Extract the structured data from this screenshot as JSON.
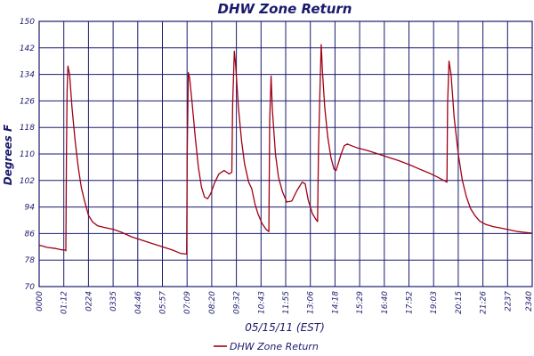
{
  "chart_data": {
    "type": "line",
    "title": "DHW Zone Return",
    "xlabel": "05/15/11 (EST)",
    "ylabel": "Degrees F",
    "ylim": [
      70,
      150
    ],
    "y_ticks": [
      "70",
      "78",
      "86",
      "94",
      "102",
      "110",
      "118",
      "126",
      "134",
      "142",
      "150"
    ],
    "x_ticks": [
      "0000",
      "01:12",
      "0224",
      "0335",
      "04:46",
      "05:57",
      "07:09",
      "08:20",
      "09:32",
      "10:43",
      "11:55",
      "13:06",
      "14:18",
      "15:29",
      "16:40",
      "17:52",
      "19:03",
      "20:15",
      "21:26",
      "2237",
      "2340"
    ],
    "grid": true,
    "legend_position": "bottom-center",
    "colors": {
      "series": "#a00014",
      "grid": "#1a1a6e",
      "text": "#1a1a6e",
      "background": "#ffffff"
    },
    "series": [
      {
        "name": "DHW Zone Return",
        "points": [
          [
            0.0,
            82.5
          ],
          [
            0.4,
            81.8
          ],
          [
            0.8,
            81.5
          ],
          [
            1.1,
            81.1
          ],
          [
            1.28,
            81.0
          ],
          [
            1.3,
            80.8
          ],
          [
            1.33,
            111.0
          ],
          [
            1.36,
            129.0
          ],
          [
            1.4,
            136.5
          ],
          [
            1.48,
            134.0
          ],
          [
            1.6,
            124.0
          ],
          [
            1.75,
            114.0
          ],
          [
            1.9,
            106.0
          ],
          [
            2.05,
            100.0
          ],
          [
            2.2,
            96.0
          ],
          [
            2.4,
            91.5
          ],
          [
            2.6,
            89.5
          ],
          [
            2.85,
            88.3
          ],
          [
            3.2,
            87.8
          ],
          [
            3.6,
            87.3
          ],
          [
            4.0,
            86.4
          ],
          [
            4.5,
            85.0
          ],
          [
            5.0,
            84.0
          ],
          [
            5.5,
            83.0
          ],
          [
            6.0,
            82.0
          ],
          [
            6.5,
            81.0
          ],
          [
            6.9,
            80.0
          ],
          [
            7.18,
            79.8
          ],
          [
            7.21,
            111.0
          ],
          [
            7.26,
            134.5
          ],
          [
            7.32,
            133.0
          ],
          [
            7.45,
            125.0
          ],
          [
            7.6,
            115.0
          ],
          [
            7.75,
            106.0
          ],
          [
            7.9,
            100.0
          ],
          [
            8.05,
            97.0
          ],
          [
            8.2,
            96.5
          ],
          [
            8.35,
            98.0
          ],
          [
            8.55,
            101.5
          ],
          [
            8.75,
            104.0
          ],
          [
            9.0,
            105.0
          ],
          [
            9.25,
            104.0
          ],
          [
            9.38,
            104.5
          ],
          [
            9.42,
            125.0
          ],
          [
            9.5,
            141.0
          ],
          [
            9.56,
            137.0
          ],
          [
            9.7,
            124.0
          ],
          [
            9.85,
            114.0
          ],
          [
            10.0,
            107.0
          ],
          [
            10.2,
            101.5
          ],
          [
            10.35,
            99.5
          ],
          [
            10.5,
            95.0
          ],
          [
            10.65,
            92.0
          ],
          [
            10.85,
            89.0
          ],
          [
            11.05,
            87.2
          ],
          [
            11.18,
            86.6
          ],
          [
            11.22,
            120.0
          ],
          [
            11.29,
            133.5
          ],
          [
            11.35,
            123.5
          ],
          [
            11.5,
            110.0
          ],
          [
            11.65,
            103.0
          ],
          [
            11.85,
            98.5
          ],
          [
            12.05,
            95.5
          ],
          [
            12.3,
            95.8
          ],
          [
            12.55,
            99.0
          ],
          [
            12.8,
            101.5
          ],
          [
            12.95,
            101.0
          ],
          [
            13.1,
            96.0
          ],
          [
            13.3,
            92.0
          ],
          [
            13.5,
            90.0
          ],
          [
            13.55,
            89.6
          ],
          [
            13.6,
            112.0
          ],
          [
            13.67,
            129.0
          ],
          [
            13.73,
            143.0
          ],
          [
            13.79,
            135.0
          ],
          [
            13.9,
            124.0
          ],
          [
            14.05,
            115.0
          ],
          [
            14.2,
            109.0
          ],
          [
            14.35,
            105.5
          ],
          [
            14.45,
            105.0
          ],
          [
            14.55,
            107.0
          ],
          [
            14.7,
            110.0
          ],
          [
            14.85,
            112.5
          ],
          [
            15.0,
            113.0
          ],
          [
            15.2,
            112.5
          ],
          [
            15.5,
            111.8
          ],
          [
            16.0,
            111.0
          ],
          [
            16.5,
            110.0
          ],
          [
            17.0,
            109.0
          ],
          [
            17.5,
            108.0
          ],
          [
            18.0,
            106.8
          ],
          [
            18.5,
            105.5
          ],
          [
            19.0,
            104.2
          ],
          [
            19.4,
            103.0
          ],
          [
            19.7,
            102.0
          ],
          [
            19.85,
            101.5
          ],
          [
            19.88,
            125.0
          ],
          [
            19.95,
            138.0
          ],
          [
            20.05,
            134.0
          ],
          [
            20.2,
            121.0
          ],
          [
            20.4,
            110.0
          ],
          [
            20.6,
            102.0
          ],
          [
            20.8,
            97.0
          ],
          [
            21.0,
            93.5
          ],
          [
            21.2,
            91.5
          ],
          [
            21.45,
            89.7
          ],
          [
            21.75,
            88.7
          ],
          [
            22.1,
            88.1
          ],
          [
            22.5,
            87.6
          ],
          [
            22.9,
            87.1
          ],
          [
            23.3,
            86.6
          ],
          [
            23.7,
            86.3
          ],
          [
            24.0,
            86.1
          ]
        ]
      }
    ]
  }
}
